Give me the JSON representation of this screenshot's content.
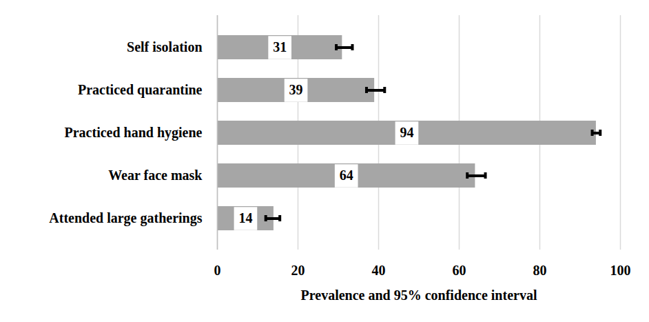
{
  "chart_data": {
    "type": "bar",
    "orientation": "horizontal",
    "categories": [
      "Self isolation",
      "Practiced quarantine",
      "Practiced hand hygiene",
      "Wear face mask",
      "Attended large gatherings"
    ],
    "values": [
      31,
      39,
      94,
      64,
      14
    ],
    "ci_low": [
      29.5,
      37,
      93,
      62,
      12
    ],
    "ci_high": [
      33.5,
      41.5,
      95,
      66.5,
      15.5
    ],
    "color": "#a6a6a6",
    "xlabel": "Prevalence and 95% confidence interval",
    "xlim": [
      0,
      100
    ],
    "xticks": [
      0,
      20,
      40,
      60,
      80,
      100
    ],
    "grid": true,
    "data_labels": true
  }
}
